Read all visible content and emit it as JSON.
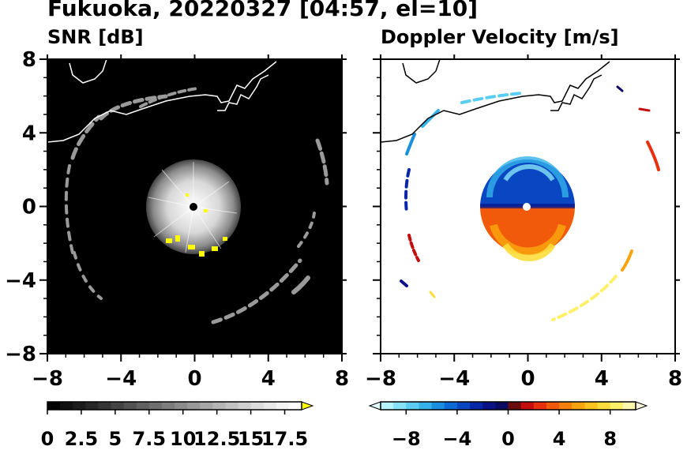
{
  "title": "Fukuoka, 20220327 [04:57, el=10]",
  "chart_data": [
    {
      "type": "heatmap",
      "title": "SNR [dB]",
      "xlim": [
        -8,
        8
      ],
      "ylim": [
        -8,
        8
      ],
      "xticks": [
        "−8",
        "−4",
        "0",
        "4",
        "8"
      ],
      "yticks": [
        "8",
        "4",
        "0",
        "−4",
        "−8"
      ],
      "xtick_values": [
        -8,
        -4,
        0,
        4,
        8
      ],
      "ytick_values": [
        8,
        4,
        0,
        -4,
        -8
      ],
      "colorbar": {
        "min": 0,
        "max": 18.75,
        "tick_labels": [
          "0",
          "2.5",
          "5",
          "7.5",
          "10",
          "12.5",
          "15",
          "17.5"
        ],
        "tick_values": [
          0,
          2.5,
          5,
          7.5,
          10,
          12.5,
          15,
          17.5
        ],
        "extend": "max",
        "colors": [
          "#000000",
          "#111111",
          "#1c1c1c",
          "#282828",
          "#353535",
          "#434343",
          "#525252",
          "#606060",
          "#6f6f6f",
          "#7d7d7d",
          "#8b8b8b",
          "#999999",
          "#a7a7a7",
          "#b5b5b5",
          "#c2c2c2",
          "#cfcfcf",
          "#dcdcdc",
          "#e8e8e8",
          "#f4f4f4",
          "#ffffff"
        ],
        "over_color": "#ffff00"
      },
      "background": "#000000"
    },
    {
      "type": "heatmap",
      "title": "Doppler Velocity [m/s]",
      "xlim": [
        -8,
        8
      ],
      "ylim": [
        -8,
        8
      ],
      "xticks": [
        "−8",
        "−4",
        "0",
        "4",
        "8"
      ],
      "xtick_values": [
        -8,
        -4,
        0,
        4,
        8
      ],
      "colorbar": {
        "min": -10,
        "max": 10,
        "tick_labels": [
          "−8",
          "−4",
          "0",
          "4",
          "8"
        ],
        "tick_values": [
          -8,
          -4,
          0,
          4,
          8
        ],
        "extend": "both",
        "colors": [
          "#b6f3ff",
          "#86e3f7",
          "#5bcdf0",
          "#35b2ea",
          "#1a8fe0",
          "#0b6ad4",
          "#0846c2",
          "#0727a8",
          "#0a1285",
          "#0b0a63",
          "#6a0a0a",
          "#c40d0d",
          "#e8300c",
          "#f05a0a",
          "#f5800a",
          "#f9a40e",
          "#fcc320",
          "#fdde3c",
          "#fff06a",
          "#fff9b0"
        ],
        "under_color": "#e0fbff",
        "over_color": "#fffbe0"
      },
      "background": "#ffffff"
    }
  ]
}
